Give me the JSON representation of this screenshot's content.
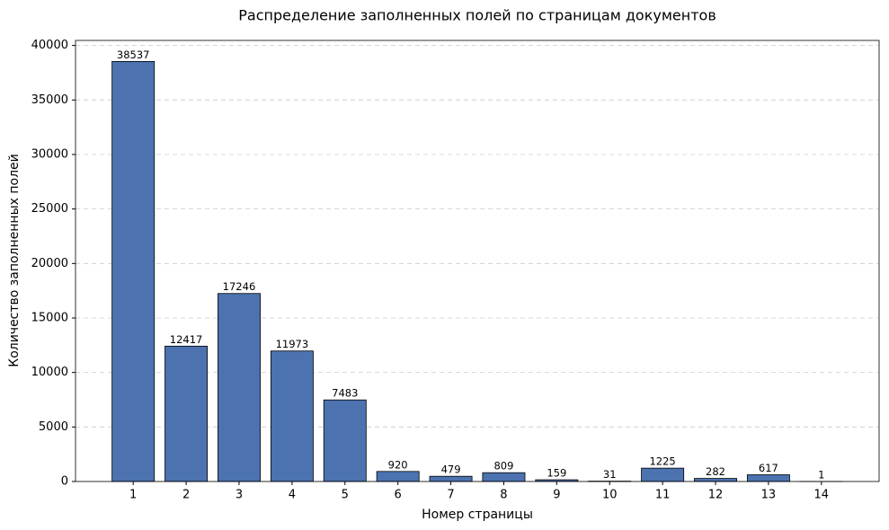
{
  "chart_data": {
    "type": "bar",
    "title": "Распределение заполненных полей по страницам документов",
    "x_label": "Номер страницы",
    "y_label": "Количество заполненных полей",
    "categories": [
      "1",
      "2",
      "3",
      "4",
      "5",
      "6",
      "7",
      "8",
      "9",
      "10",
      "11",
      "12",
      "13",
      "14"
    ],
    "values": [
      38537,
      12417,
      17246,
      11973,
      7483,
      920,
      479,
      809,
      159,
      31,
      1225,
      282,
      617,
      1
    ],
    "color": "#4c72b0",
    "edge_color": "#000000",
    "ylim": [
      0,
      40464
    ],
    "yticks": [
      0,
      5000,
      10000,
      15000,
      20000,
      25000,
      30000,
      35000,
      40000
    ],
    "grid": true
  }
}
